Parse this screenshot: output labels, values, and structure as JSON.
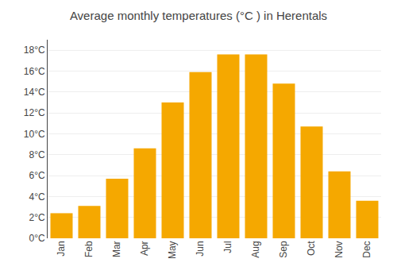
{
  "chart_data": {
    "type": "bar",
    "title": "Average monthly temperatures (°C ) in Herentals",
    "categories": [
      "Jan",
      "Feb",
      "Mar",
      "Apr",
      "May",
      "Jun",
      "Jul",
      "Aug",
      "Sep",
      "Oct",
      "Nov",
      "Dec"
    ],
    "values": [
      2.4,
      3.1,
      5.7,
      8.6,
      13.0,
      15.9,
      17.6,
      17.6,
      14.8,
      10.7,
      6.4,
      3.6
    ],
    "color": "#F5A800",
    "ylim": [
      0,
      19
    ],
    "yticks": [
      {
        "value": 0,
        "label": "0°C"
      },
      {
        "value": 2,
        "label": "2°C"
      },
      {
        "value": 4,
        "label": "4°C"
      },
      {
        "value": 6,
        "label": "6°C"
      },
      {
        "value": 8,
        "label": "8°C"
      },
      {
        "value": 10,
        "label": "10°C"
      },
      {
        "value": 12,
        "label": "12°C"
      },
      {
        "value": 14,
        "label": "14°C"
      },
      {
        "value": 16,
        "label": "16°C"
      },
      {
        "value": 18,
        "label": "18°C"
      }
    ],
    "grid": true
  }
}
